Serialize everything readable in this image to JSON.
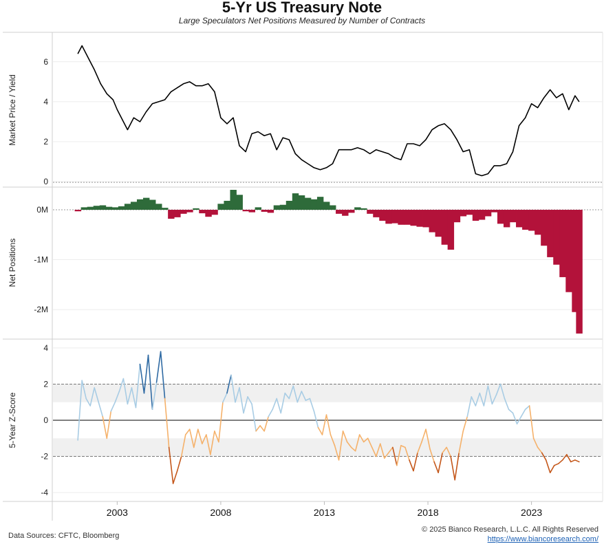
{
  "header": {
    "title": "5-Yr US Treasury Note",
    "subtitle": "Large Speculators Net Positions Measured by Number of Contracts"
  },
  "footer": {
    "sources": "Data Sources: CFTC, Bloomberg",
    "copyright": "© 2025 Bianco Research, L.L.C. All Rights Reserved",
    "link": "https://www.biancoresearch.com/"
  },
  "colors": {
    "price_line": "#000000",
    "net_positive": "#2e6b3a",
    "net_negative": "#b3123a",
    "z_high": "#2f6aa3",
    "z_low_pos": "#a8cce4",
    "z_low_neg": "#f5b16a",
    "z_high_neg": "#c4571a",
    "band_fill": "#f0f0f0"
  },
  "chart_data": [
    {
      "type": "line",
      "ylabel": "Market Price / Yield",
      "ylim": [
        -0.2,
        7.3
      ],
      "yticks": [
        0,
        2,
        4,
        6
      ],
      "ytick_labels": [
        "0",
        "2",
        "4",
        "6"
      ],
      "series": [
        {
          "x": [
            2001.1,
            2001.3,
            2001.6,
            2001.9,
            2002.2,
            2002.5,
            2002.8,
            2003.0,
            2003.3,
            2003.5,
            2003.8,
            2004.1,
            2004.4,
            2004.7,
            2005.0,
            2005.3,
            2005.6,
            2005.9,
            2006.2,
            2006.5,
            2006.8,
            2007.1,
            2007.4,
            2007.7,
            2008.0,
            2008.3,
            2008.6,
            2008.9,
            2009.2,
            2009.5,
            2009.8,
            2010.1,
            2010.4,
            2010.7,
            2011.0,
            2011.3,
            2011.6,
            2011.9,
            2012.2,
            2012.5,
            2012.8,
            2013.1,
            2013.4,
            2013.7,
            2014.0,
            2014.3,
            2014.6,
            2014.9,
            2015.2,
            2015.5,
            2015.8,
            2016.1,
            2016.4,
            2016.7,
            2017.0,
            2017.3,
            2017.6,
            2017.9,
            2018.2,
            2018.5,
            2018.8,
            2019.1,
            2019.4,
            2019.7,
            2020.0,
            2020.3,
            2020.6,
            2020.9,
            2021.2,
            2021.5,
            2021.8,
            2022.1,
            2022.4,
            2022.7,
            2023.0,
            2023.3,
            2023.6,
            2023.9,
            2024.2,
            2024.5,
            2024.8,
            2025.1,
            2025.3
          ],
          "values": [
            6.4,
            6.8,
            6.2,
            5.6,
            4.9,
            4.4,
            4.1,
            3.6,
            3.0,
            2.6,
            3.2,
            3.0,
            3.5,
            3.9,
            4.0,
            4.1,
            4.5,
            4.7,
            4.9,
            5.0,
            4.8,
            4.8,
            4.9,
            4.5,
            3.2,
            2.9,
            3.2,
            1.8,
            1.5,
            2.4,
            2.5,
            2.3,
            2.4,
            1.6,
            2.2,
            2.1,
            1.4,
            1.1,
            0.9,
            0.7,
            0.6,
            0.7,
            0.9,
            1.6,
            1.6,
            1.6,
            1.7,
            1.6,
            1.4,
            1.6,
            1.5,
            1.4,
            1.2,
            1.1,
            1.9,
            1.9,
            1.8,
            2.1,
            2.6,
            2.8,
            2.9,
            2.6,
            2.1,
            1.5,
            1.6,
            0.4,
            0.3,
            0.4,
            0.8,
            0.8,
            0.9,
            1.5,
            2.8,
            3.2,
            3.9,
            3.7,
            4.2,
            4.6,
            4.2,
            4.4,
            3.6,
            4.3,
            4.0
          ],
          "color": "#000000"
        }
      ]
    },
    {
      "type": "bar",
      "ylabel": "Net Positions",
      "ylim": [
        -2.55,
        0.4
      ],
      "yticks": [
        0,
        -1,
        -2
      ],
      "ytick_labels": [
        "0M",
        "-1M",
        "-2M"
      ],
      "x": [
        2001.1,
        2001.4,
        2001.7,
        2002.0,
        2002.3,
        2002.6,
        2002.9,
        2003.2,
        2003.5,
        2003.8,
        2004.1,
        2004.4,
        2004.7,
        2005.0,
        2005.3,
        2005.6,
        2005.9,
        2006.2,
        2006.5,
        2006.8,
        2007.1,
        2007.4,
        2007.7,
        2008.0,
        2008.3,
        2008.6,
        2008.9,
        2009.2,
        2009.5,
        2009.8,
        2010.1,
        2010.4,
        2010.7,
        2011.0,
        2011.3,
        2011.6,
        2011.9,
        2012.2,
        2012.5,
        2012.8,
        2013.1,
        2013.4,
        2013.7,
        2014.0,
        2014.3,
        2014.6,
        2014.9,
        2015.2,
        2015.5,
        2015.8,
        2016.1,
        2016.4,
        2016.7,
        2017.0,
        2017.3,
        2017.6,
        2017.9,
        2018.2,
        2018.5,
        2018.8,
        2019.1,
        2019.4,
        2019.7,
        2020.0,
        2020.3,
        2020.6,
        2020.9,
        2021.2,
        2021.5,
        2021.8,
        2022.1,
        2022.4,
        2022.7,
        2023.0,
        2023.3,
        2023.6,
        2023.9,
        2024.2,
        2024.5,
        2024.8,
        2025.1,
        2025.3
      ],
      "values": [
        -0.03,
        0.05,
        0.06,
        0.08,
        0.09,
        0.06,
        0.05,
        0.07,
        0.12,
        0.16,
        0.21,
        0.24,
        0.2,
        0.12,
        0.04,
        -0.18,
        -0.15,
        -0.08,
        -0.05,
        0.03,
        -0.07,
        -0.14,
        -0.1,
        0.12,
        0.18,
        0.4,
        0.3,
        -0.03,
        -0.05,
        0.05,
        -0.04,
        -0.06,
        0.09,
        0.1,
        0.18,
        0.33,
        0.29,
        0.24,
        0.21,
        0.26,
        0.16,
        0.09,
        -0.08,
        -0.12,
        -0.06,
        0.05,
        0.03,
        -0.08,
        -0.15,
        -0.22,
        -0.28,
        -0.27,
        -0.3,
        -0.3,
        -0.32,
        -0.34,
        -0.35,
        -0.45,
        -0.54,
        -0.7,
        -0.8,
        -0.25,
        -0.13,
        -0.1,
        -0.22,
        -0.2,
        -0.13,
        -0.05,
        -0.28,
        -0.35,
        -0.25,
        -0.35,
        -0.4,
        -0.42,
        -0.5,
        -0.72,
        -0.95,
        -1.1,
        -1.35,
        -1.65,
        -2.05,
        -2.48
      ]
    },
    {
      "type": "line",
      "ylabel": "5-Year Z-Score",
      "ylim": [
        -4.3,
        4.3
      ],
      "yticks": [
        4,
        2,
        0,
        -2,
        -4
      ],
      "ytick_labels": [
        "4",
        "2",
        "0",
        "-2",
        "-4"
      ],
      "bands": [
        [
          1,
          2
        ],
        [
          -2,
          -1
        ]
      ],
      "series": [
        {
          "x": [
            2001.1,
            2001.3,
            2001.5,
            2001.7,
            2001.9,
            2002.1,
            2002.3,
            2002.5,
            2002.7,
            2002.9,
            2003.1,
            2003.3,
            2003.5,
            2003.7,
            2003.9,
            2004.1,
            2004.3,
            2004.5,
            2004.7,
            2004.9,
            2005.1,
            2005.3,
            2005.5,
            2005.7,
            2005.9,
            2006.1,
            2006.3,
            2006.5,
            2006.7,
            2006.9,
            2007.1,
            2007.3,
            2007.5,
            2007.7,
            2007.9,
            2008.1,
            2008.3,
            2008.5,
            2008.7,
            2008.9,
            2009.1,
            2009.3,
            2009.5,
            2009.7,
            2009.9,
            2010.1,
            2010.3,
            2010.5,
            2010.7,
            2010.9,
            2011.1,
            2011.3,
            2011.5,
            2011.7,
            2011.9,
            2012.1,
            2012.3,
            2012.5,
            2012.7,
            2012.9,
            2013.1,
            2013.3,
            2013.5,
            2013.7,
            2013.9,
            2014.1,
            2014.3,
            2014.5,
            2014.7,
            2014.9,
            2015.1,
            2015.3,
            2015.5,
            2015.7,
            2015.9,
            2016.1,
            2016.3,
            2016.5,
            2016.7,
            2016.9,
            2017.1,
            2017.3,
            2017.5,
            2017.7,
            2017.9,
            2018.1,
            2018.3,
            2018.5,
            2018.7,
            2018.9,
            2019.1,
            2019.3,
            2019.5,
            2019.7,
            2019.9,
            2020.1,
            2020.3,
            2020.5,
            2020.7,
            2020.9,
            2021.1,
            2021.3,
            2021.5,
            2021.7,
            2021.9,
            2022.1,
            2022.3,
            2022.5,
            2022.7,
            2022.9,
            2023.1,
            2023.3,
            2023.5,
            2023.7,
            2023.9,
            2024.1,
            2024.3,
            2024.5,
            2024.7,
            2024.9,
            2025.1,
            2025.3
          ],
          "values": [
            -1.1,
            2.2,
            1.2,
            0.8,
            1.8,
            1.0,
            0.2,
            -1.0,
            0.5,
            1.0,
            1.6,
            2.3,
            0.9,
            1.8,
            0.7,
            3.1,
            1.5,
            3.6,
            0.6,
            2.1,
            3.8,
            1.2,
            -1.5,
            -3.5,
            -2.8,
            -2.0,
            -0.8,
            -0.5,
            -1.5,
            -0.5,
            -1.3,
            -0.8,
            -1.9,
            -0.6,
            -1.2,
            1.0,
            1.5,
            2.5,
            1.0,
            1.8,
            0.4,
            1.3,
            0.9,
            -0.6,
            -0.3,
            -0.6,
            0.2,
            0.6,
            1.2,
            0.4,
            1.5,
            1.2,
            1.9,
            1.0,
            1.6,
            1.1,
            1.2,
            0.5,
            -0.4,
            -0.8,
            0.3,
            -0.8,
            -1.4,
            -2.2,
            -0.6,
            -1.2,
            -1.5,
            -1.7,
            -0.8,
            -1.2,
            -1.0,
            -1.5,
            -2.0,
            -1.3,
            -2.1,
            -1.8,
            -1.5,
            -2.5,
            -1.4,
            -1.5,
            -2.2,
            -2.8,
            -1.8,
            -1.2,
            -0.5,
            -1.6,
            -2.3,
            -2.9,
            -1.8,
            -1.5,
            -2.0,
            -3.3,
            -1.8,
            -0.6,
            0.2,
            1.3,
            0.8,
            1.5,
            0.8,
            1.9,
            0.9,
            1.4,
            2.0,
            1.2,
            0.6,
            0.4,
            -0.2,
            0.2,
            0.6,
            0.8,
            -1.0,
            -1.5,
            -1.8,
            -2.2,
            -2.9,
            -2.5,
            -2.4,
            -2.2,
            -1.9,
            -2.3,
            -2.2,
            -2.3
          ]
        }
      ]
    }
  ],
  "x_axis": {
    "xlim": [
      1999.9,
      2026.4
    ],
    "ticks": [
      2003,
      2008,
      2013,
      2018,
      2023
    ],
    "labels": [
      "2003",
      "2008",
      "2013",
      "2018",
      "2023"
    ]
  }
}
